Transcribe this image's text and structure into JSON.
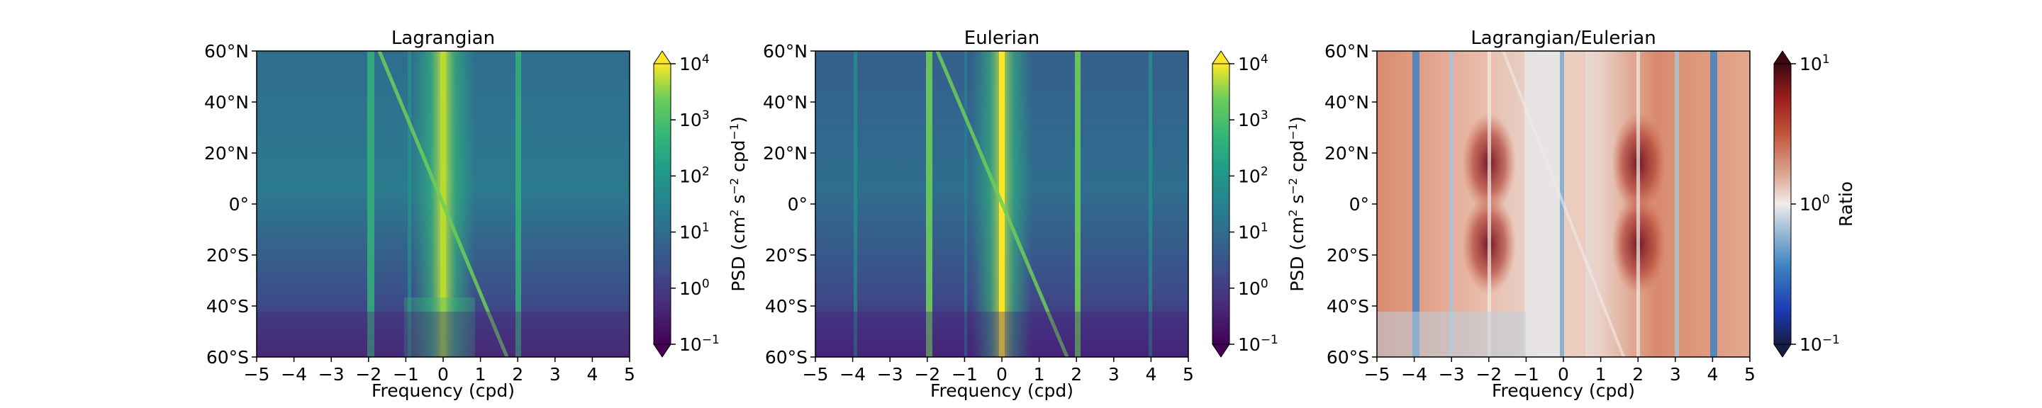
{
  "chart_data": [
    {
      "type": "heatmap",
      "title": "Lagrangian",
      "xlabel": "Frequency (cpd)",
      "ylabel": "",
      "x_ticks": [
        "−5",
        "−4",
        "−3",
        "−2",
        "−1",
        "0",
        "1",
        "2",
        "3",
        "4",
        "5"
      ],
      "y_ticks": [
        "60°S",
        "40°S",
        "20°S",
        "0°",
        "20°N",
        "40°N",
        "60°N"
      ],
      "xlim": [
        -5,
        5
      ],
      "ylim": [
        -60,
        60
      ],
      "colormap": "viridis",
      "colorbar": {
        "label": "PSD (cm² s⁻² cpd⁻¹)",
        "label_parts": {
          "pre": "PSD (cm",
          "s1": "2",
          "mid1": " s",
          "s2": "−2",
          "mid2": " cpd",
          "s3": "−1",
          "post": ")"
        },
        "scale": "log",
        "range": [
          0.1,
          10000
        ],
        "ticks": [
          {
            "base": "10",
            "exp": "−1"
          },
          {
            "base": "10",
            "exp": "0"
          },
          {
            "base": "10",
            "exp": "1"
          },
          {
            "base": "10",
            "exp": "2"
          },
          {
            "base": "10",
            "exp": "3"
          },
          {
            "base": "10",
            "exp": "4"
          }
        ],
        "extend": "both"
      }
    },
    {
      "type": "heatmap",
      "title": "Eulerian",
      "xlabel": "Frequency (cpd)",
      "ylabel": "",
      "x_ticks": [
        "−5",
        "−4",
        "−3",
        "−2",
        "−1",
        "0",
        "1",
        "2",
        "3",
        "4",
        "5"
      ],
      "y_ticks": [
        "60°S",
        "40°S",
        "20°S",
        "0°",
        "20°N",
        "40°N",
        "60°N"
      ],
      "xlim": [
        -5,
        5
      ],
      "ylim": [
        -60,
        60
      ],
      "colormap": "viridis",
      "colorbar": {
        "label": "PSD (cm² s⁻² cpd⁻¹)",
        "label_parts": {
          "pre": "PSD (cm",
          "s1": "2",
          "mid1": " s",
          "s2": "−2",
          "mid2": " cpd",
          "s3": "−1",
          "post": ")"
        },
        "scale": "log",
        "range": [
          0.1,
          10000
        ],
        "ticks": [
          {
            "base": "10",
            "exp": "−1"
          },
          {
            "base": "10",
            "exp": "0"
          },
          {
            "base": "10",
            "exp": "1"
          },
          {
            "base": "10",
            "exp": "2"
          },
          {
            "base": "10",
            "exp": "3"
          },
          {
            "base": "10",
            "exp": "4"
          }
        ],
        "extend": "both"
      }
    },
    {
      "type": "heatmap",
      "title": "Lagrangian/Eulerian",
      "xlabel": "Frequency (cpd)",
      "ylabel": "",
      "x_ticks": [
        "−5",
        "−4",
        "−3",
        "−2",
        "−1",
        "0",
        "1",
        "2",
        "3",
        "4",
        "5"
      ],
      "y_ticks": [
        "60°S",
        "40°S",
        "20°S",
        "0°",
        "20°N",
        "40°N",
        "60°N"
      ],
      "xlim": [
        -5,
        5
      ],
      "ylim": [
        -60,
        60
      ],
      "colormap": "balance",
      "colorbar": {
        "label": "Ratio",
        "scale": "log",
        "range": [
          0.1,
          10
        ],
        "ticks": [
          {
            "base": "10",
            "exp": "−1"
          },
          {
            "base": "10",
            "exp": "0"
          },
          {
            "base": "10",
            "exp": "1"
          }
        ],
        "extend": "both"
      }
    }
  ]
}
